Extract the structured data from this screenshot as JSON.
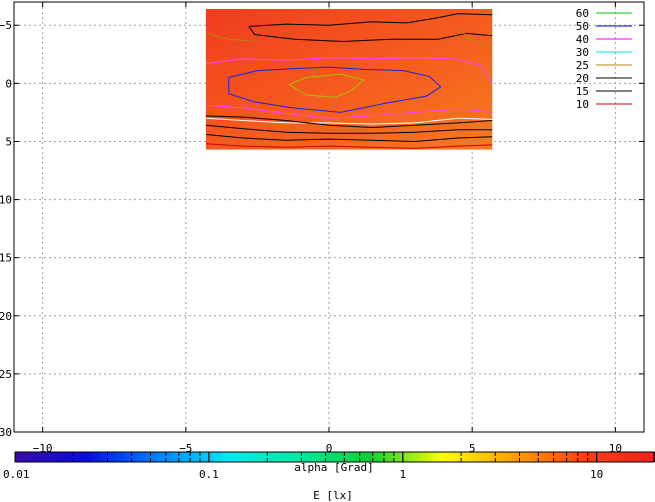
{
  "chart_data": {
    "type": "heatmap",
    "title": "",
    "xlabel": "alpha [Grad]",
    "ylabel": "",
    "xlim": [
      -11,
      11
    ],
    "ylim": [
      30,
      -7
    ],
    "xticks": [
      -10,
      -5,
      0,
      5,
      10
    ],
    "yticks": [
      -5,
      0,
      5,
      10,
      15,
      20,
      25,
      30
    ],
    "grid": true,
    "heatmap_region": {
      "x": [
        -4.3,
        5.7
      ],
      "y": [
        -6.4,
        5.7
      ],
      "base_color": "#f5501e"
    },
    "contour_levels": [
      {
        "name": "60",
        "color": "#00cc00"
      },
      {
        "name": "50",
        "color": "#0000cc"
      },
      {
        "name": "40",
        "color": "#ff00ff"
      },
      {
        "name": "30",
        "color": "#00e5ee"
      },
      {
        "name": "25",
        "color": "#b8860b"
      },
      {
        "name": "20",
        "color": "#000000"
      },
      {
        "name": "15",
        "color": "#000000"
      },
      {
        "name": "10",
        "color": "#cc0000"
      }
    ],
    "contours": [
      {
        "level": "60",
        "color": "#a8c000",
        "points": [
          [
            -1.4,
            0.1
          ],
          [
            -0.8,
            -0.5
          ],
          [
            0.4,
            -0.8
          ],
          [
            1.2,
            -0.3
          ],
          [
            0.8,
            0.6
          ],
          [
            0.2,
            1.2
          ],
          [
            -0.8,
            1.0
          ],
          [
            -1.4,
            0.1
          ]
        ]
      },
      {
        "level": "50",
        "color": "#2020e0",
        "points": [
          [
            -3.5,
            -0.5
          ],
          [
            -2.5,
            -1.1
          ],
          [
            -1,
            -1.3
          ],
          [
            0,
            -1.4
          ],
          [
            1.2,
            -1.2
          ],
          [
            2.6,
            -1.1
          ],
          [
            3.5,
            -0.6
          ],
          [
            3.9,
            0.3
          ],
          [
            3.4,
            1.1
          ],
          [
            2,
            1.7
          ],
          [
            0.4,
            2.5
          ],
          [
            -1.3,
            2.1
          ],
          [
            -2.6,
            1.6
          ],
          [
            -3.5,
            0.9
          ],
          [
            -3.5,
            -0.5
          ]
        ]
      },
      {
        "level": "40",
        "color": "#ff40ff",
        "points": [
          [
            -4.3,
            -1.7
          ],
          [
            -3,
            -2.1
          ],
          [
            -1.5,
            -2.0
          ],
          [
            0,
            -2.2
          ],
          [
            1.5,
            -2.1
          ],
          [
            3,
            -2.2
          ],
          [
            4.5,
            -2.1
          ],
          [
            5.3,
            -1.5
          ],
          [
            5.7,
            0
          ]
        ]
      },
      {
        "level": "40b",
        "color": "#ff40ff",
        "points": [
          [
            -4.3,
            1.9
          ],
          [
            -3,
            2.1
          ],
          [
            -1.5,
            2.6
          ],
          [
            0,
            3.0
          ],
          [
            1.5,
            2.8
          ],
          [
            3,
            2.5
          ],
          [
            4.5,
            2.2
          ],
          [
            5.7,
            2.5
          ]
        ]
      },
      {
        "level": "30",
        "color": "#ffffff",
        "points": [
          [
            -4.3,
            3.0
          ],
          [
            -3,
            3.2
          ],
          [
            -1.5,
            3.4
          ],
          [
            0,
            3.4
          ],
          [
            1.5,
            3.5
          ],
          [
            3,
            3.4
          ],
          [
            4.5,
            3.0
          ],
          [
            5.7,
            3.1
          ]
        ]
      },
      {
        "level": "20",
        "color": "#000000",
        "points": [
          [
            -2.8,
            -4.9
          ],
          [
            -1.5,
            -5.1
          ],
          [
            0,
            -5.0
          ],
          [
            1.5,
            -5.3
          ],
          [
            2.7,
            -5.2
          ],
          [
            3.7,
            -5.6
          ],
          [
            4.5,
            -6.0
          ],
          [
            5.7,
            -5.9
          ]
        ]
      },
      {
        "level": "20b",
        "color": "#000000",
        "points": [
          [
            -2.8,
            -4.9
          ],
          [
            -2.6,
            -4.2
          ],
          [
            -1.2,
            -3.8
          ],
          [
            0.5,
            -3.6
          ],
          [
            2.2,
            -3.8
          ],
          [
            3.8,
            -3.8
          ],
          [
            4.8,
            -4.3
          ],
          [
            5.7,
            -4.1
          ]
        ]
      },
      {
        "level": "20c",
        "color": "#000000",
        "points": [
          [
            -4.3,
            2.8
          ],
          [
            -3,
            2.9
          ],
          [
            -1.5,
            3.2
          ],
          [
            0,
            3.6
          ],
          [
            1.5,
            3.8
          ],
          [
            3,
            3.6
          ],
          [
            4.5,
            3.4
          ],
          [
            5.7,
            3.2
          ]
        ]
      },
      {
        "level": "15",
        "color": "#000000",
        "points": [
          [
            -4.3,
            4.4
          ],
          [
            -3,
            4.7
          ],
          [
            -1.5,
            4.9
          ],
          [
            0,
            4.8
          ],
          [
            1.5,
            4.9
          ],
          [
            3,
            5.0
          ],
          [
            4.5,
            4.7
          ],
          [
            5.7,
            4.6
          ]
        ]
      },
      {
        "level": "15b",
        "color": "#000000",
        "points": [
          [
            -4.3,
            3.6
          ],
          [
            -3,
            3.9
          ],
          [
            -1.5,
            4.2
          ],
          [
            0,
            4.3
          ],
          [
            1.5,
            4.3
          ],
          [
            3,
            4.2
          ],
          [
            4.5,
            4.0
          ],
          [
            5.7,
            4.0
          ]
        ]
      },
      {
        "level": "10",
        "color": "#cc0000",
        "points": [
          [
            -4.3,
            5.2
          ],
          [
            -3,
            5.4
          ],
          [
            -1.5,
            5.5
          ],
          [
            0,
            5.4
          ],
          [
            1.5,
            5.5
          ],
          [
            3,
            5.6
          ],
          [
            4.5,
            5.4
          ],
          [
            5.7,
            5.3
          ]
        ]
      },
      {
        "level": "25",
        "color": "#b8860b",
        "points": [
          [
            -4.3,
            -4.3
          ],
          [
            -3.5,
            -3.8
          ],
          [
            -2.5,
            -3.6
          ]
        ]
      },
      {
        "level": "25b",
        "color": "#b8860b",
        "points": [
          [
            4.5,
            -4.6
          ],
          [
            5.2,
            -3.5
          ],
          [
            5.7,
            -3.0
          ]
        ]
      }
    ],
    "colorbar": {
      "label": "E [lx]",
      "scale": "log",
      "range": [
        0.01,
        20
      ],
      "ticks": [
        {
          "value": 0.01,
          "label": "0.01"
        },
        {
          "value": 0.1,
          "label": "0.1"
        },
        {
          "value": 1,
          "label": "1"
        },
        {
          "value": 10,
          "label": "10"
        }
      ],
      "stops": [
        "#3a0aa8",
        "#0a0ae0",
        "#0080ff",
        "#00e8f0",
        "#00e8a0",
        "#10d030",
        "#ffff00",
        "#ffa000",
        "#ff4010",
        "#f02020"
      ]
    }
  }
}
